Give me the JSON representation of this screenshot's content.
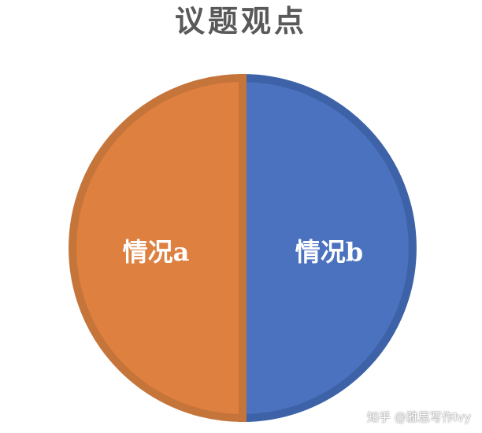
{
  "title": "议题观点",
  "slices": [
    {
      "label": "情况a",
      "value": 50,
      "fill": "#dd8040",
      "border": "#c5743a"
    },
    {
      "label": "情况b",
      "value": 50,
      "fill": "#4a72bf",
      "border": "#3d62a8"
    }
  ],
  "watermark": "知乎 @雅思写作Ivy"
}
